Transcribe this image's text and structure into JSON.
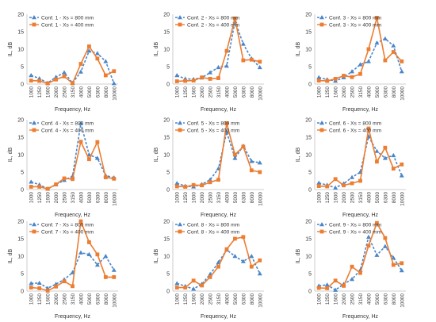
{
  "colors": {
    "series_800": "#4a86c8",
    "series_400": "#ed7d31",
    "axis": "#bfbfbf",
    "text": "#333333"
  },
  "chart_data": [
    {
      "type": "line",
      "categories": [
        "1000",
        "1250",
        "1600",
        "2000",
        "2500",
        "3150",
        "4000",
        "5000",
        "6300",
        "8000",
        "10000"
      ],
      "xlabel": "Frequency, Hz",
      "ylabel": "IL, dB",
      "ylim": [
        0,
        20
      ],
      "yticks": [
        "0",
        "5",
        "10",
        "15",
        "20"
      ],
      "legend_position": "top-left",
      "grid": false,
      "series": [
        {
          "name": "Conf. 1 - Xs = 800 mm",
          "style": "dashed-triangle",
          "values": [
            2.5,
            1.6,
            0.3,
            2.0,
            3.3,
            0.3,
            3.5,
            9.5,
            8.8,
            6.5,
            0.2
          ]
        },
        {
          "name": "Conf. 1 - Xs = 400 mm",
          "style": "solid-square",
          "values": [
            1.0,
            0.9,
            0.2,
            1.3,
            2.2,
            0.2,
            5.8,
            10.8,
            7.3,
            2.5,
            3.7
          ]
        }
      ]
    },
    {
      "type": "line",
      "categories": [
        "1000",
        "1250",
        "1600",
        "2000",
        "2500",
        "3150",
        "4000",
        "5000",
        "6300",
        "8000",
        "10000"
      ],
      "xlabel": "Frequency, Hz",
      "ylabel": "IL, dB",
      "ylim": [
        0,
        20
      ],
      "yticks": [
        "0",
        "5",
        "10",
        "15",
        "20"
      ],
      "legend_position": "top-left",
      "grid": false,
      "series": [
        {
          "name": "Conf. 2 - Xs = 800 mm",
          "style": "dashed-triangle",
          "values": [
            2.5,
            1.5,
            1.4,
            1.8,
            3.3,
            4.8,
            5.2,
            18.0,
            11.5,
            7.3,
            4.8
          ]
        },
        {
          "name": "Conf. 2 - Xs = 400 mm",
          "style": "solid-square",
          "values": [
            0.8,
            0.9,
            1.0,
            1.9,
            1.5,
            1.7,
            9.5,
            18.8,
            6.8,
            7.0,
            6.4
          ]
        }
      ]
    },
    {
      "type": "line",
      "categories": [
        "1000",
        "1250",
        "1600",
        "2000",
        "2500",
        "3150",
        "4000",
        "5000",
        "6300",
        "8000",
        "10000"
      ],
      "xlabel": "Frequency, Hz",
      "ylabel": "IL, dB",
      "ylim": [
        0,
        20
      ],
      "yticks": [
        "0",
        "5",
        "10",
        "15",
        "20"
      ],
      "legend_position": "top-left",
      "grid": false,
      "series": [
        {
          "name": "Conf. 3 - Xs = 800 mm",
          "style": "dashed-triangle",
          "values": [
            1.9,
            1.3,
            0.9,
            1.9,
            3.6,
            5.6,
            6.5,
            11.8,
            13.0,
            11.0,
            3.6
          ]
        },
        {
          "name": "Conf. 3 - Xs = 400 mm",
          "style": "solid-square",
          "values": [
            1.0,
            0.9,
            1.5,
            2.4,
            2.0,
            2.9,
            10.0,
            19.0,
            6.8,
            9.2,
            6.5
          ]
        }
      ]
    },
    {
      "type": "line",
      "categories": [
        "1000",
        "1250",
        "1600",
        "2000",
        "2500",
        "3150",
        "4000",
        "5000",
        "6300",
        "8000",
        "10000"
      ],
      "xlabel": "Frequency, Hz",
      "ylabel": "IL, dB",
      "ylim": [
        0,
        20
      ],
      "yticks": [
        "0",
        "5",
        "10",
        "15",
        "20"
      ],
      "legend_position": "top-left",
      "grid": false,
      "series": [
        {
          "name": "Conf. 4 - Xs = 800 mm",
          "style": "dashed-triangle",
          "values": [
            2.2,
            1.4,
            0.2,
            1.4,
            2.7,
            3.8,
            19.0,
            10.0,
            9.0,
            4.0,
            3.4
          ]
        },
        {
          "name": "Conf. 4 - Xs = 400 mm",
          "style": "solid-square",
          "values": [
            0.8,
            0.8,
            0.2,
            1.5,
            3.2,
            3.0,
            13.7,
            8.7,
            13.6,
            3.5,
            3.1
          ]
        }
      ]
    },
    {
      "type": "line",
      "categories": [
        "1000",
        "1250",
        "1600",
        "2000",
        "2500",
        "3150",
        "4000",
        "5000",
        "6300",
        "8000",
        "10000"
      ],
      "xlabel": "Frequency, Hz",
      "ylabel": "IL, dB",
      "ylim": [
        0,
        20
      ],
      "yticks": [
        "0",
        "5",
        "10",
        "15",
        "20"
      ],
      "legend_position": "top-left",
      "grid": false,
      "series": [
        {
          "name": "Conf. 5 - Xs = 800 mm",
          "style": "dashed-triangle",
          "values": [
            1.8,
            1.0,
            0.8,
            1.5,
            2.8,
            6.0,
            16.5,
            9.0,
            12.5,
            8.1,
            7.7
          ]
        },
        {
          "name": "Conf. 5 - Xs = 400 mm",
          "style": "solid-square",
          "values": [
            0.9,
            0.8,
            1.3,
            1.2,
            2.1,
            2.8,
            19.0,
            10.0,
            12.3,
            5.5,
            5.0
          ]
        }
      ]
    },
    {
      "type": "line",
      "categories": [
        "1000",
        "1250",
        "1600",
        "2000",
        "2500",
        "3150",
        "4000",
        "5000",
        "6300",
        "8000",
        "10000"
      ],
      "xlabel": "Frequency, Hz",
      "ylabel": "IL, dB",
      "ylim": [
        0,
        20
      ],
      "yticks": [
        "0",
        "5",
        "10",
        "15",
        "20"
      ],
      "legend_position": "top-left",
      "grid": false,
      "series": [
        {
          "name": "Conf. 6 - Xs = 800 mm",
          "style": "dashed-triangle",
          "values": [
            1.9,
            1.3,
            0.5,
            1.7,
            3.5,
            5.0,
            15.2,
            11.0,
            9.0,
            9.8,
            4.0
          ]
        },
        {
          "name": "Conf. 6 - Xs = 400 mm",
          "style": "solid-square",
          "values": [
            1.0,
            0.9,
            3.0,
            1.2,
            1.8,
            2.5,
            17.5,
            8.0,
            12.0,
            6.0,
            7.2
          ]
        }
      ]
    },
    {
      "type": "line",
      "categories": [
        "1000",
        "1250",
        "1600",
        "2000",
        "2500",
        "3150",
        "4000",
        "5000",
        "6300",
        "8000",
        "10000"
      ],
      "xlabel": "Frequency, Hz",
      "ylabel": "IL, dB",
      "ylim": [
        0,
        20
      ],
      "yticks": [
        "0",
        "5",
        "10",
        "15",
        "20"
      ],
      "legend_position": "top-left",
      "grid": false,
      "series": [
        {
          "name": "Conf. 7 - Xs = 800 mm",
          "style": "dashed-triangle",
          "values": [
            2.2,
            2.3,
            0.8,
            2.0,
            3.3,
            5.3,
            11.0,
            10.5,
            7.5,
            10.0,
            6.0
          ]
        },
        {
          "name": "Conf. 7 - Xs = 400 mm",
          "style": "solid-square",
          "values": [
            1.0,
            0.8,
            0.1,
            1.3,
            2.8,
            1.4,
            20.0,
            14.0,
            10.5,
            4.0,
            4.0
          ]
        }
      ]
    },
    {
      "type": "line",
      "categories": [
        "1000",
        "1250",
        "1600",
        "2000",
        "2500",
        "3150",
        "4000",
        "5000",
        "6300",
        "8000",
        "10000"
      ],
      "xlabel": "Frequency, Hz",
      "ylabel": "IL, dB",
      "ylim": [
        0,
        20
      ],
      "yticks": [
        "0",
        "5",
        "10",
        "15",
        "20"
      ],
      "legend_position": "top-left",
      "grid": false,
      "series": [
        {
          "name": "Conf. 8 - Xs = 800 mm",
          "style": "dashed-triangle",
          "values": [
            2.2,
            1.4,
            0.6,
            2.0,
            4.8,
            8.2,
            11.8,
            10.0,
            8.5,
            10.0,
            5.0
          ]
        },
        {
          "name": "Conf. 8 - Xs = 400 mm",
          "style": "solid-square",
          "values": [
            1.0,
            1.0,
            3.0,
            1.6,
            4.0,
            7.0,
            12.0,
            15.0,
            15.5,
            7.0,
            8.8
          ]
        }
      ]
    },
    {
      "type": "line",
      "categories": [
        "1000",
        "1250",
        "1600",
        "2000",
        "2500",
        "3150",
        "4000",
        "5000",
        "6300",
        "8000",
        "10000"
      ],
      "xlabel": "Frequency, Hz",
      "ylabel": "IL, dB",
      "ylim": [
        0,
        20
      ],
      "yticks": [
        "0",
        "5",
        "10",
        "15",
        "20"
      ],
      "legend_position": "top-left",
      "grid": false,
      "series": [
        {
          "name": "Conf. 9 - Xs = 800 mm",
          "style": "dashed-triangle",
          "values": [
            1.5,
            1.8,
            0.3,
            2.0,
            3.4,
            6.0,
            15.5,
            10.3,
            12.8,
            9.5,
            5.9
          ]
        },
        {
          "name": "Conf. 9 - Xs = 400 mm",
          "style": "solid-square",
          "values": [
            0.9,
            0.8,
            3.0,
            1.5,
            7.0,
            5.2,
            13.0,
            19.5,
            15.2,
            7.5,
            8.0
          ]
        }
      ]
    }
  ]
}
